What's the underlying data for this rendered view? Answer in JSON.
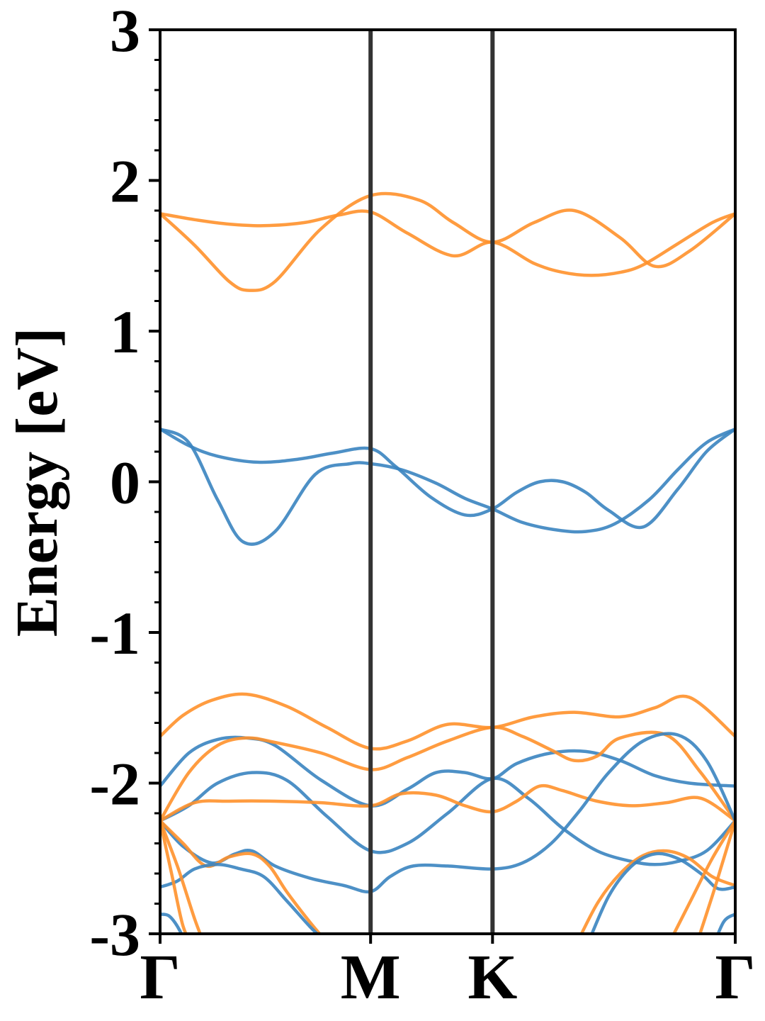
{
  "chart_data": {
    "type": "line",
    "title": "",
    "xlabel": "",
    "ylabel": "Energy [eV]",
    "ylim": [
      -3,
      3
    ],
    "y_ticks": [
      {
        "value": 3,
        "label": "3"
      },
      {
        "value": 2,
        "label": "2"
      },
      {
        "value": 1,
        "label": "1"
      },
      {
        "value": 0,
        "label": "0"
      },
      {
        "value": -1,
        "label": "-1"
      },
      {
        "value": -2,
        "label": "-2"
      },
      {
        "value": -3,
        "label": "-3"
      }
    ],
    "x_points": [
      {
        "label": "Γ",
        "position": 0.0
      },
      {
        "label": "M",
        "position": 0.366
      },
      {
        "label": "K",
        "position": 0.578
      },
      {
        "label": "Γ",
        "position": 1.0
      }
    ],
    "grid": false,
    "legend": "none",
    "colors": {
      "blue": "#3a84c0",
      "orange": "#ff912b",
      "vline": "#333333"
    },
    "series": [
      {
        "color": "orange",
        "x": [
          0,
          0.06,
          0.12,
          0.155,
          0.2,
          0.28,
          0.366,
          0.45,
          0.51,
          0.578,
          0.65,
          0.72,
          0.8,
          0.86,
          0.92,
          1.0
        ],
        "values": [
          1.78,
          1.57,
          1.33,
          1.27,
          1.33,
          1.68,
          1.9,
          1.87,
          1.72,
          1.59,
          1.72,
          1.8,
          1.62,
          1.43,
          1.53,
          1.78
        ]
      },
      {
        "color": "orange",
        "x": [
          0,
          0.06,
          0.12,
          0.18,
          0.25,
          0.31,
          0.366,
          0.43,
          0.51,
          0.578,
          0.65,
          0.7,
          0.75,
          0.8,
          0.84,
          0.9,
          0.96,
          1.0
        ],
        "values": [
          1.78,
          1.74,
          1.71,
          1.7,
          1.72,
          1.77,
          1.79,
          1.65,
          1.5,
          1.59,
          1.45,
          1.39,
          1.37,
          1.39,
          1.44,
          1.58,
          1.72,
          1.78
        ]
      },
      {
        "color": "blue",
        "x": [
          0,
          0.05,
          0.1,
          0.17,
          0.24,
          0.3,
          0.366,
          0.41,
          0.47,
          0.53,
          0.578,
          0.62,
          0.66,
          0.7,
          0.74,
          0.78,
          0.84,
          0.9,
          0.95,
          1.0
        ],
        "values": [
          0.35,
          0.24,
          0.17,
          0.13,
          0.15,
          0.19,
          0.22,
          0.1,
          -0.1,
          -0.22,
          -0.18,
          -0.07,
          0.0,
          0.0,
          -0.07,
          -0.19,
          -0.3,
          -0.05,
          0.2,
          0.35
        ]
      },
      {
        "color": "blue",
        "x": [
          0,
          0.05,
          0.1,
          0.145,
          0.2,
          0.27,
          0.33,
          0.366,
          0.42,
          0.48,
          0.53,
          0.578,
          0.63,
          0.69,
          0.74,
          0.79,
          0.85,
          0.9,
          0.95,
          1.0
        ],
        "values": [
          0.35,
          0.26,
          -0.12,
          -0.4,
          -0.33,
          0.05,
          0.12,
          0.12,
          0.08,
          -0.01,
          -0.11,
          -0.18,
          -0.27,
          -0.32,
          -0.33,
          -0.28,
          -0.12,
          0.08,
          0.26,
          0.35
        ]
      },
      {
        "color": "orange",
        "x": [
          0,
          0.04,
          0.09,
          0.15,
          0.22,
          0.29,
          0.366,
          0.43,
          0.5,
          0.578,
          0.65,
          0.72,
          0.8,
          0.86,
          0.92,
          1.0
        ],
        "values": [
          -1.69,
          -1.55,
          -1.45,
          -1.41,
          -1.49,
          -1.63,
          -1.77,
          -1.72,
          -1.61,
          -1.63,
          -1.56,
          -1.53,
          -1.56,
          -1.5,
          -1.43,
          -1.69
        ]
      },
      {
        "color": "blue",
        "x": [
          0,
          0.05,
          0.1,
          0.15,
          0.2,
          0.28,
          0.366,
          0.43,
          0.48,
          0.53,
          0.578,
          0.62,
          0.68,
          0.74,
          0.8,
          0.86,
          0.92,
          1.0
        ],
        "values": [
          -2.02,
          -1.8,
          -1.71,
          -1.7,
          -1.75,
          -1.98,
          -2.15,
          -2.04,
          -1.93,
          -1.93,
          -1.97,
          -1.87,
          -1.8,
          -1.79,
          -1.85,
          -1.95,
          -2.0,
          -2.02
        ]
      },
      {
        "color": "orange",
        "x": [
          0,
          0.05,
          0.1,
          0.15,
          0.2,
          0.28,
          0.366,
          0.43,
          0.5,
          0.578,
          0.63,
          0.68,
          0.72,
          0.76,
          0.8,
          0.88,
          0.94,
          1.0
        ],
        "values": [
          -2.25,
          -1.93,
          -1.75,
          -1.7,
          -1.73,
          -1.8,
          -1.91,
          -1.83,
          -1.72,
          -1.63,
          -1.69,
          -1.78,
          -1.85,
          -1.82,
          -1.7,
          -1.68,
          -1.93,
          -2.25
        ]
      },
      {
        "color": "blue",
        "x": [
          0,
          0.05,
          0.1,
          0.16,
          0.22,
          0.29,
          0.366,
          0.43,
          0.5,
          0.578,
          0.64,
          0.7,
          0.76,
          0.82,
          0.86,
          0.9,
          0.95,
          1.0
        ],
        "values": [
          -2.25,
          -2.15,
          -2.0,
          -1.93,
          -1.98,
          -2.22,
          -2.45,
          -2.4,
          -2.2,
          -1.97,
          -2.1,
          -2.3,
          -2.45,
          -2.52,
          -2.54,
          -2.52,
          -2.45,
          -2.25
        ]
      },
      {
        "color": "orange",
        "x": [
          0,
          0.06,
          0.12,
          0.2,
          0.28,
          0.366,
          0.42,
          0.48,
          0.53,
          0.578,
          0.62,
          0.66,
          0.7,
          0.76,
          0.82,
          0.88,
          0.94,
          1.0
        ],
        "values": [
          -2.25,
          -2.13,
          -2.12,
          -2.12,
          -2.13,
          -2.15,
          -2.07,
          -2.08,
          -2.15,
          -2.19,
          -2.12,
          -2.02,
          -2.05,
          -2.12,
          -2.15,
          -2.13,
          -2.1,
          -2.25
        ]
      },
      {
        "color": "blue",
        "x": [
          0,
          0.04,
          0.09,
          0.13,
          0.16,
          0.2,
          0.26,
          0.32,
          0.366,
          0.4,
          0.44,
          0.5,
          0.578,
          0.63,
          0.68,
          0.73,
          0.78,
          0.84,
          0.9,
          0.95,
          1.0
        ],
        "values": [
          -2.25,
          -2.42,
          -2.53,
          -2.47,
          -2.45,
          -2.55,
          -2.63,
          -2.68,
          -2.72,
          -2.62,
          -2.55,
          -2.55,
          -2.57,
          -2.53,
          -2.4,
          -2.18,
          -1.93,
          -1.72,
          -1.68,
          -1.85,
          -2.25
        ]
      },
      {
        "color": "orange",
        "x": [
          0,
          0.04,
          0.08,
          0.12,
          0.16,
          0.19,
          0.22,
          0.26,
          0.3
        ],
        "values": [
          -2.25,
          -2.4,
          -2.55,
          -2.49,
          -2.47,
          -2.55,
          -2.72,
          -2.92,
          -3.1
        ]
      },
      {
        "color": "orange",
        "x": [
          0.72,
          0.76,
          0.8,
          0.84,
          0.88,
          0.92,
          0.96,
          1.0
        ],
        "values": [
          -3.1,
          -2.8,
          -2.6,
          -2.48,
          -2.45,
          -2.5,
          -2.62,
          -2.68
        ]
      },
      {
        "color": "blue",
        "x": [
          0,
          0.03,
          0.06,
          0.1,
          0.14,
          0.18,
          0.22,
          0.26,
          0.3
        ],
        "values": [
          -2.69,
          -2.65,
          -2.57,
          -2.54,
          -2.57,
          -2.62,
          -2.78,
          -2.95,
          -3.1
        ]
      },
      {
        "color": "blue",
        "x": [
          0.74,
          0.78,
          0.82,
          0.86,
          0.9,
          0.94,
          0.97,
          1.0
        ],
        "values": [
          -3.1,
          -2.75,
          -2.55,
          -2.47,
          -2.5,
          -2.6,
          -2.7,
          -2.69
        ]
      },
      {
        "color": "orange",
        "x": [
          0,
          0.02,
          0.04,
          0.06
        ],
        "values": [
          -2.25,
          -2.6,
          -2.95,
          -3.1
        ]
      },
      {
        "color": "orange",
        "x": [
          0,
          0.03,
          0.06,
          0.08
        ],
        "values": [
          -2.25,
          -2.55,
          -2.9,
          -3.1
        ]
      },
      {
        "color": "orange",
        "x": [
          0.88,
          0.92,
          0.96,
          1.0
        ],
        "values": [
          -3.1,
          -2.8,
          -2.5,
          -2.25
        ]
      },
      {
        "color": "orange",
        "x": [
          0.93,
          0.96,
          0.98,
          1.0
        ],
        "values": [
          -3.1,
          -2.75,
          -2.5,
          -2.25
        ]
      },
      {
        "color": "blue",
        "x": [
          0,
          0.015,
          0.03,
          0.05
        ],
        "values": [
          -2.87,
          -2.88,
          -2.95,
          -3.1
        ]
      },
      {
        "color": "blue",
        "x": [
          0.96,
          0.98,
          1.0
        ],
        "values": [
          -3.1,
          -2.92,
          -2.87
        ]
      }
    ]
  }
}
